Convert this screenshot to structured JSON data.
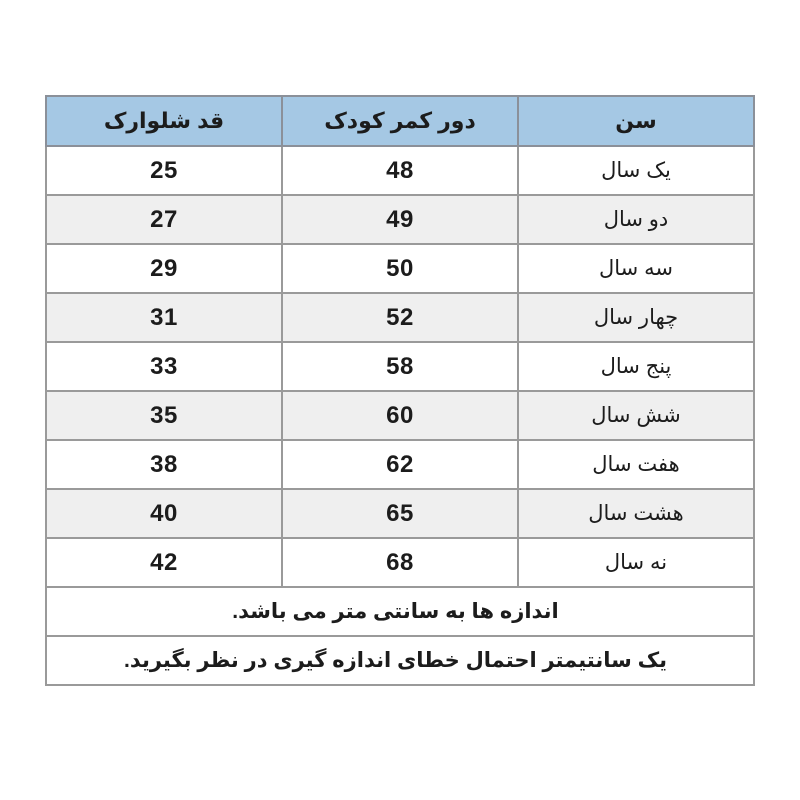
{
  "table": {
    "headers": {
      "age": "سن",
      "waist": "دور کمر کودک",
      "length": "قد شلوارک"
    },
    "rows": [
      {
        "age": "یک سال",
        "waist": "48",
        "length": "25"
      },
      {
        "age": "دو سال",
        "waist": "49",
        "length": "27"
      },
      {
        "age": "سه سال",
        "waist": "50",
        "length": "29"
      },
      {
        "age": "چهار سال",
        "waist": "52",
        "length": "31"
      },
      {
        "age": "پنج سال",
        "waist": "58",
        "length": "33"
      },
      {
        "age": "شش سال",
        "waist": "60",
        "length": "35"
      },
      {
        "age": "هفت سال",
        "waist": "62",
        "length": "38"
      },
      {
        "age": "هشت سال",
        "waist": "65",
        "length": "40"
      },
      {
        "age": "نه سال",
        "waist": "68",
        "length": "42"
      }
    ],
    "notes": [
      "اندازه ها به سانتی متر می باشد.",
      "یک سانتیمتر احتمال خطای اندازه گیری در نظر بگیرید."
    ]
  },
  "colors": {
    "header_bg": "#a5c8e4",
    "stripe_bg": "#efefef",
    "border": "#9a9a9a",
    "text": "#1c1c1c",
    "page_bg": "#ffffff"
  },
  "chart_data": {
    "type": "table",
    "direction": "rtl",
    "columns": [
      "سن",
      "دور کمر کودک",
      "قد شلوارک"
    ],
    "rows": [
      [
        "یک سال",
        48,
        25
      ],
      [
        "دو سال",
        49,
        27
      ],
      [
        "سه سال",
        50,
        29
      ],
      [
        "چهار سال",
        52,
        31
      ],
      [
        "پنج سال",
        58,
        33
      ],
      [
        "شش سال",
        60,
        35
      ],
      [
        "هفت سال",
        62,
        38
      ],
      [
        "هشت سال",
        65,
        40
      ],
      [
        "نه سال",
        68,
        42
      ]
    ],
    "notes": [
      "اندازه ها به سانتی متر می باشد.",
      "یک سانتیمتر احتمال خطای اندازه گیری در نظر بگیرید."
    ],
    "header_style": "light-blue header, alternating white/gray striped rows"
  }
}
